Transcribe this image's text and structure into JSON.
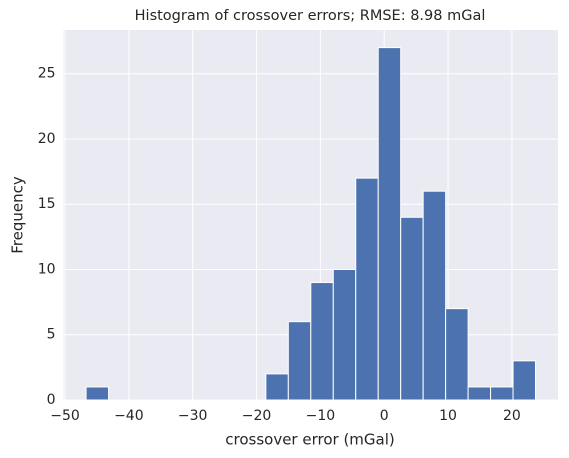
{
  "chart_data": {
    "type": "histogram",
    "title": "Histogram of crossover errors; RMSE: 8.98 mGal",
    "x_label": "crossover error (mGal)",
    "y_label": "Frequency",
    "bins": [
      -46.7,
      -43.18,
      -39.66,
      -36.14,
      -32.62,
      -29.1,
      -25.58,
      -22.06,
      -18.54,
      -15.02,
      -11.5,
      -7.98,
      -4.46,
      -0.94,
      2.58,
      6.1,
      9.62,
      13.14,
      16.66,
      20.18,
      23.7
    ],
    "values": [
      1,
      0,
      0,
      0,
      0,
      0,
      0,
      0,
      2,
      6,
      9,
      10,
      17,
      27,
      14,
      16,
      7,
      1,
      1,
      3
    ],
    "color": "#4c72b0",
    "xlim": [
      -50.22,
      27.22
    ],
    "ylim": [
      0,
      28.35
    ],
    "xticks": [
      {
        "value": -50,
        "label": "−50"
      },
      {
        "value": -40,
        "label": "−40"
      },
      {
        "value": -30,
        "label": "−30"
      },
      {
        "value": -20,
        "label": "−20"
      },
      {
        "value": -10,
        "label": "−10"
      },
      0,
      10,
      20
    ],
    "yticks": [
      0,
      5,
      10,
      15,
      20,
      25
    ],
    "grid": true
  }
}
